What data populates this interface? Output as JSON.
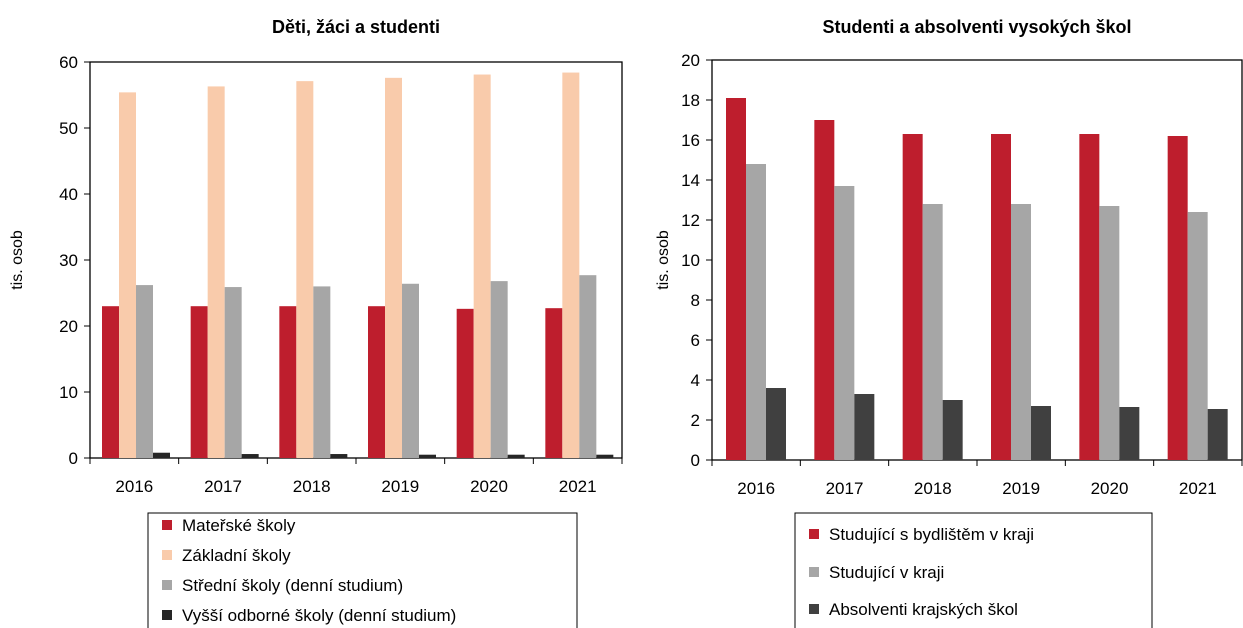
{
  "chart_data": [
    {
      "type": "bar",
      "title": "Děti, žáci a studenti",
      "ylabel": "tis. osob",
      "xlabel": "",
      "ylim": [
        0,
        60
      ],
      "yticks": [
        0,
        10,
        20,
        30,
        40,
        50,
        60
      ],
      "grid": false,
      "legend_position": "bottom",
      "categories": [
        "2016",
        "2017",
        "2018",
        "2019",
        "2020",
        "2021"
      ],
      "series": [
        {
          "name": "Mateřské školy",
          "color": "#BE1E2D",
          "values": [
            23.0,
            23.0,
            23.0,
            23.0,
            22.6,
            22.7
          ]
        },
        {
          "name": "Základní školy",
          "color": "#F9CBAB",
          "values": [
            55.4,
            56.3,
            57.1,
            57.6,
            58.1,
            58.4
          ]
        },
        {
          "name": "Střední školy (denní studium)",
          "color": "#A6A6A6",
          "values": [
            26.2,
            25.9,
            26.0,
            26.4,
            26.8,
            27.7
          ]
        },
        {
          "name": "Vyšší odborné školy (denní studium)",
          "color": "#262626",
          "values": [
            0.8,
            0.6,
            0.6,
            0.5,
            0.5,
            0.5
          ]
        }
      ]
    },
    {
      "type": "bar",
      "title": "Studenti a absolventi vysokých škol",
      "ylabel": "tis. osob",
      "xlabel": "",
      "ylim": [
        0,
        20
      ],
      "yticks": [
        0,
        2,
        4,
        6,
        8,
        10,
        12,
        14,
        16,
        18,
        20
      ],
      "grid": false,
      "legend_position": "bottom",
      "categories": [
        "2016",
        "2017",
        "2018",
        "2019",
        "2020",
        "2021"
      ],
      "series": [
        {
          "name": "Studující s bydlištěm v kraji",
          "color": "#BE1E2D",
          "values": [
            18.1,
            17.0,
            16.3,
            16.3,
            16.3,
            16.2
          ]
        },
        {
          "name": "Studující v kraji",
          "color": "#A6A6A6",
          "values": [
            14.8,
            13.7,
            12.8,
            12.8,
            12.7,
            12.4
          ]
        },
        {
          "name": "Absolventi krajských škol",
          "color": "#404040",
          "values": [
            3.6,
            3.3,
            3.0,
            2.7,
            2.65,
            2.55
          ]
        }
      ]
    }
  ]
}
